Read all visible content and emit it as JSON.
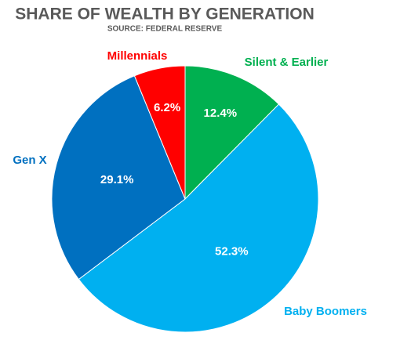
{
  "chart_data": {
    "type": "pie",
    "title": "SHARE OF WEALTH BY GENERATION",
    "subtitle": "SOURCE: FEDERAL RESERVE",
    "categories": [
      "Silent & Earlier",
      "Baby Boomers",
      "Gen X",
      "Millennials"
    ],
    "values": [
      12.4,
      52.3,
      29.1,
      6.2
    ],
    "value_labels": [
      "12.4%",
      "52.3%",
      "29.1%",
      "6.2%"
    ],
    "colors": [
      "#00b050",
      "#00b0f0",
      "#0070c0",
      "#ff0000"
    ]
  }
}
